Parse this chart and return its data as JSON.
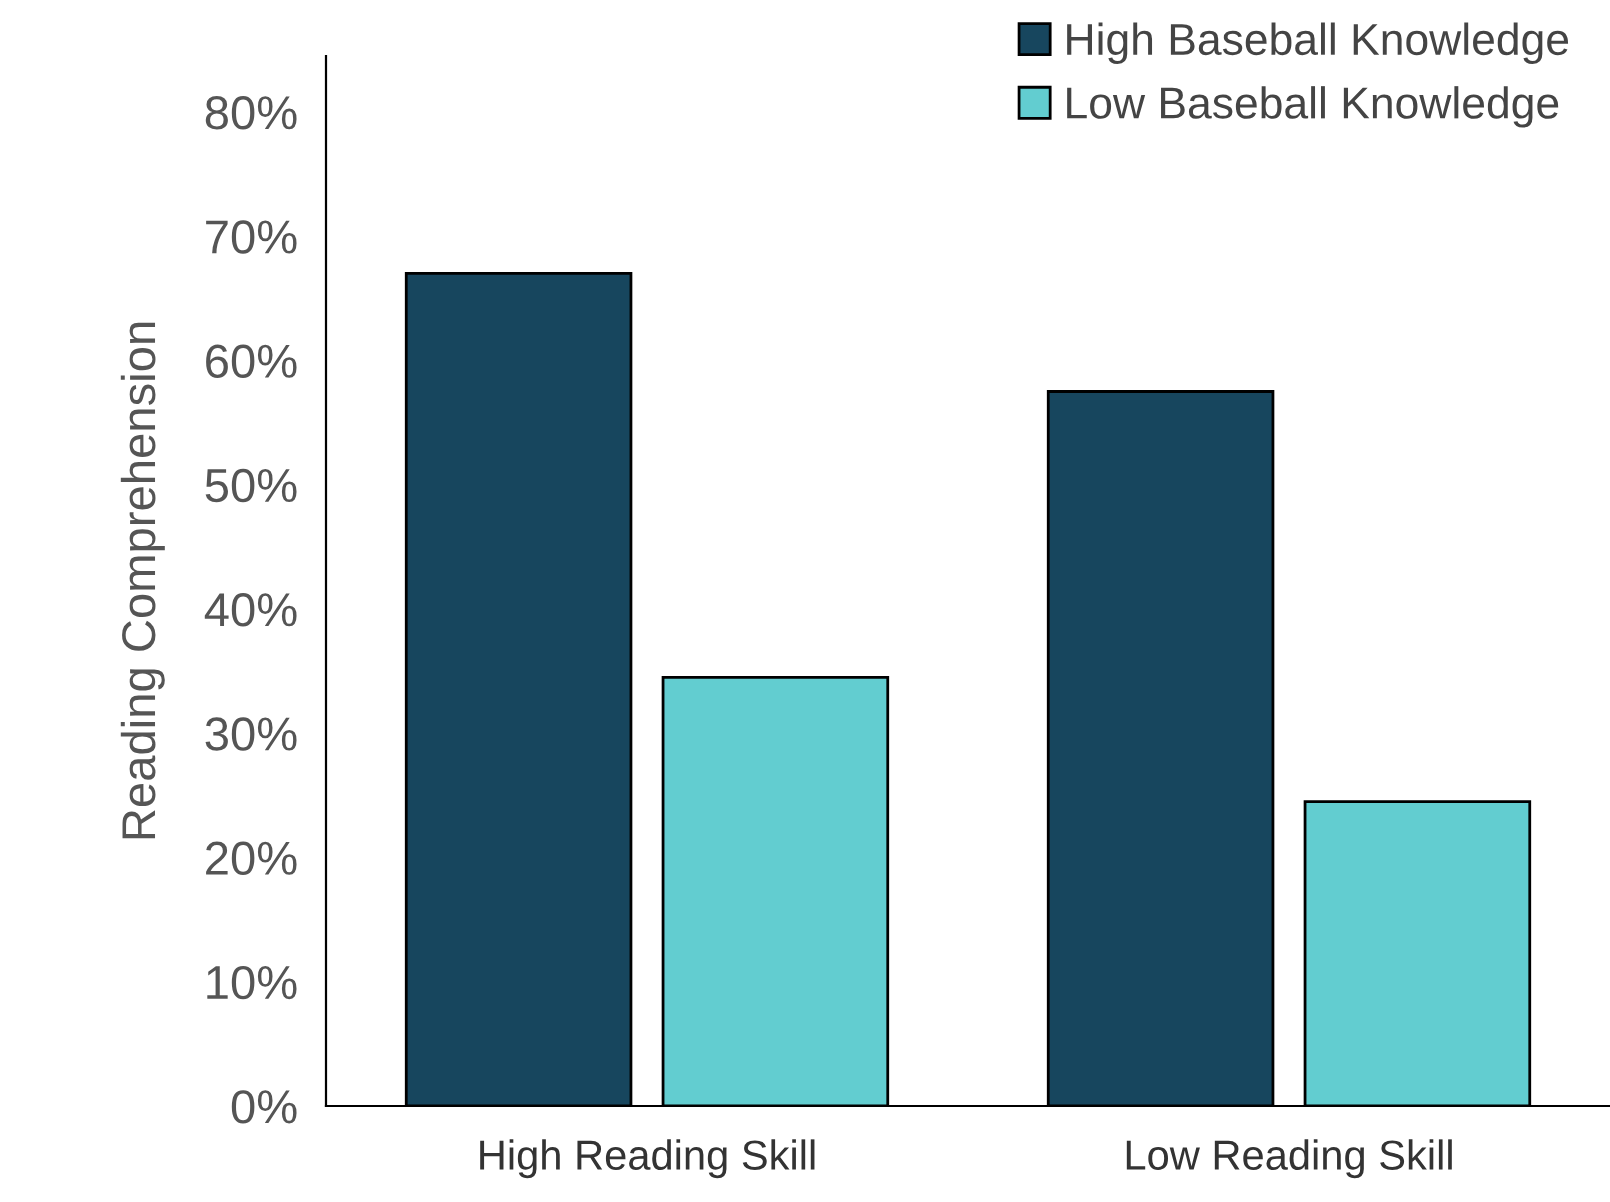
{
  "chart_data": {
    "type": "bar",
    "ylabel": "Reading Comprehension",
    "categories": [
      "High Reading Skill",
      "Low Reading Skill"
    ],
    "series": [
      {
        "name": "High Baseball Knowledge",
        "color": "#17465e",
        "values": [
          67,
          57.5
        ]
      },
      {
        "name": "Low Baseball Knowledge",
        "color": "#62cdd0",
        "values": [
          34.5,
          24.5
        ]
      }
    ],
    "ylim": [
      0,
      84.5
    ],
    "yticks": [
      {
        "value": 0,
        "label": "0%"
      },
      {
        "value": 10,
        "label": "10%"
      },
      {
        "value": 20,
        "label": "20%"
      },
      {
        "value": 30,
        "label": "30%"
      },
      {
        "value": 40,
        "label": "40%"
      },
      {
        "value": 50,
        "label": "50%"
      },
      {
        "value": 60,
        "label": "60%"
      },
      {
        "value": 70,
        "label": "70%"
      },
      {
        "value": 80,
        "label": "80%"
      }
    ],
    "grid": false,
    "legend": "top right"
  }
}
